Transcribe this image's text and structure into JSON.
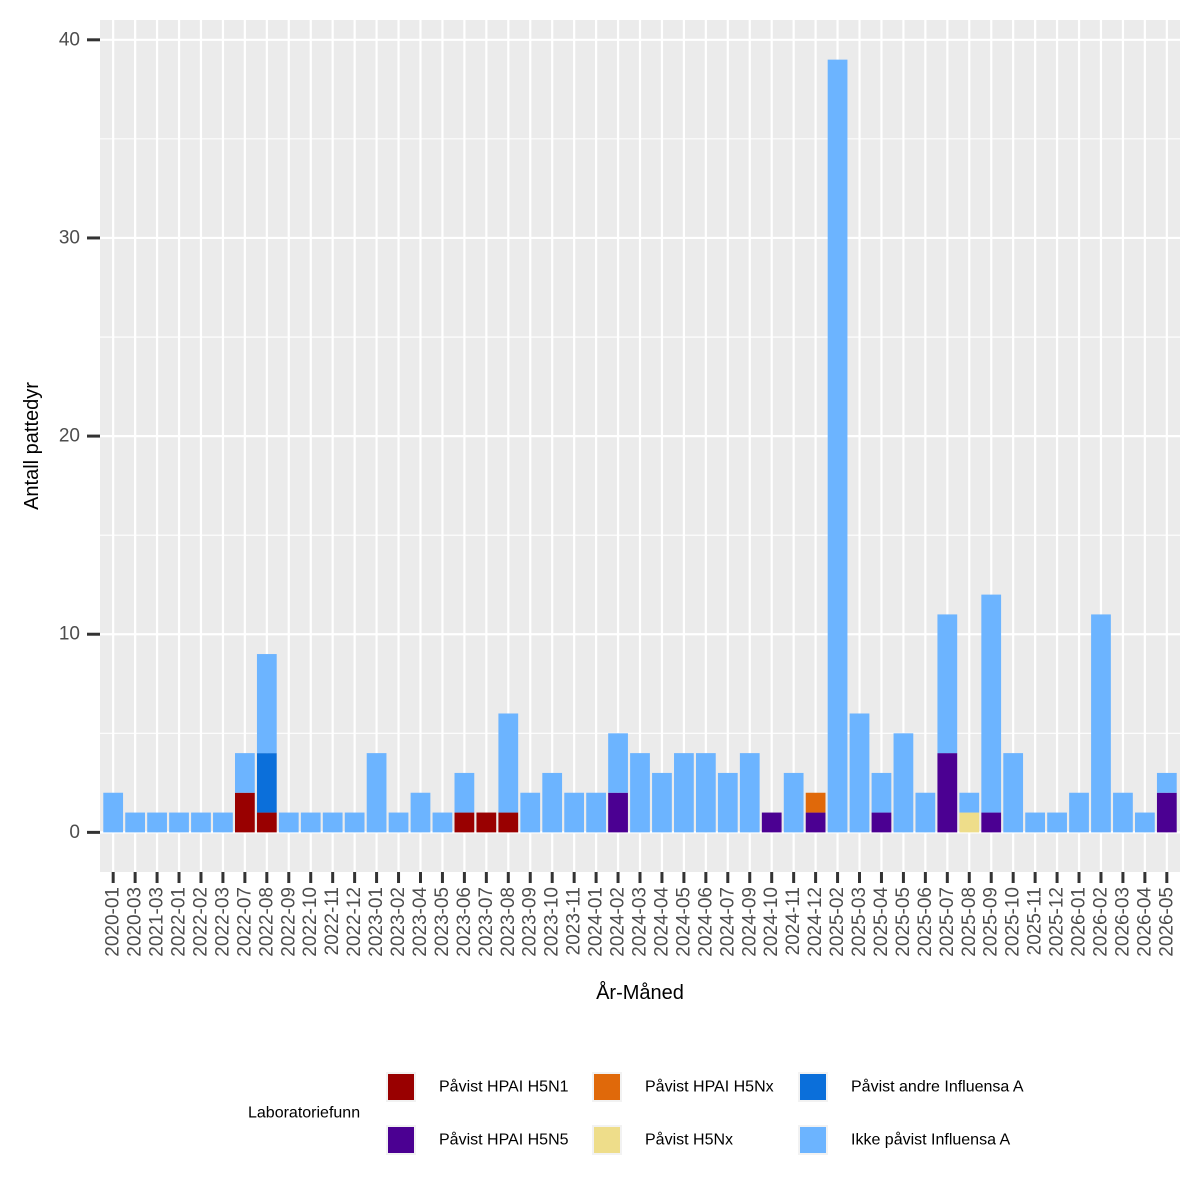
{
  "chart_data": {
    "type": "bar",
    "stacked": true,
    "xlabel": "År-Måned",
    "ylabel": "Antall pattedyr",
    "legend_title": "Laboratoriefunn",
    "legend_position": "bottom",
    "grid": true,
    "ylim": [
      -2,
      41
    ],
    "yticks": [
      0,
      10,
      20,
      30,
      40
    ],
    "categories": [
      "2020-01",
      "2020-03",
      "2021-03",
      "2022-01",
      "2022-02",
      "2022-03",
      "2022-07",
      "2022-08",
      "2022-09",
      "2022-10",
      "2022-11",
      "2022-12",
      "2023-01",
      "2023-02",
      "2023-04",
      "2023-05",
      "2023-06",
      "2023-07",
      "2023-08",
      "2023-09",
      "2023-10",
      "2023-11",
      "2024-01",
      "2024-02",
      "2024-03",
      "2024-04",
      "2024-05",
      "2024-06",
      "2024-07",
      "2024-09",
      "2024-10",
      "2024-11",
      "2024-12",
      "2025-02",
      "2025-03",
      "2025-04",
      "2025-05",
      "2025-06",
      "2025-07",
      "2025-08",
      "2025-09",
      "2025-10",
      "2025-11",
      "2025-12",
      "2026-01",
      "2026-02",
      "2026-03",
      "2026-04",
      "2026-05"
    ],
    "series": [
      {
        "name": "Påvist HPAI H5N1",
        "color": "#990000",
        "values": [
          0,
          0,
          0,
          0,
          0,
          0,
          2,
          1,
          0,
          0,
          0,
          0,
          0,
          0,
          0,
          0,
          1,
          1,
          1,
          0,
          0,
          0,
          0,
          0,
          0,
          0,
          0,
          0,
          0,
          0,
          0,
          0,
          0,
          0,
          0,
          0,
          0,
          0,
          0,
          0,
          0,
          0,
          0,
          0,
          0,
          0,
          0,
          0,
          0
        ]
      },
      {
        "name": "Påvist HPAI H5N5",
        "color": "#4B0092",
        "values": [
          0,
          0,
          0,
          0,
          0,
          0,
          0,
          0,
          0,
          0,
          0,
          0,
          0,
          0,
          0,
          0,
          0,
          0,
          0,
          0,
          0,
          0,
          0,
          2,
          0,
          0,
          0,
          0,
          0,
          0,
          1,
          0,
          1,
          0,
          0,
          1,
          0,
          0,
          4,
          0,
          1,
          0,
          0,
          0,
          0,
          0,
          0,
          0,
          2
        ]
      },
      {
        "name": "Påvist HPAI H5Nx",
        "color": "#E0690A",
        "values": [
          0,
          0,
          0,
          0,
          0,
          0,
          0,
          0,
          0,
          0,
          0,
          0,
          0,
          0,
          0,
          0,
          0,
          0,
          0,
          0,
          0,
          0,
          0,
          0,
          0,
          0,
          0,
          0,
          0,
          0,
          0,
          0,
          1,
          0,
          0,
          0,
          0,
          0,
          0,
          0,
          0,
          0,
          0,
          0,
          0,
          0,
          0,
          0,
          0
        ]
      },
      {
        "name": "Påvist H5Nx",
        "color": "#EEDD8A",
        "values": [
          0,
          0,
          0,
          0,
          0,
          0,
          0,
          0,
          0,
          0,
          0,
          0,
          0,
          0,
          0,
          0,
          0,
          0,
          0,
          0,
          0,
          0,
          0,
          0,
          0,
          0,
          0,
          0,
          0,
          0,
          0,
          0,
          0,
          0,
          0,
          0,
          0,
          0,
          0,
          1,
          0,
          0,
          0,
          0,
          0,
          0,
          0,
          0,
          0
        ]
      },
      {
        "name": "Påvist andre Influensa A",
        "color": "#0B6FDA",
        "values": [
          0,
          0,
          0,
          0,
          0,
          0,
          0,
          3,
          0,
          0,
          0,
          0,
          0,
          0,
          0,
          0,
          0,
          0,
          0,
          0,
          0,
          0,
          0,
          0,
          0,
          0,
          0,
          0,
          0,
          0,
          0,
          0,
          0,
          0,
          0,
          0,
          0,
          0,
          0,
          0,
          0,
          0,
          0,
          0,
          0,
          0,
          0,
          0,
          0
        ]
      },
      {
        "name": "Ikke påvist Influensa A",
        "color": "#6CB4FF",
        "values": [
          2,
          1,
          1,
          1,
          1,
          1,
          2,
          5,
          1,
          1,
          1,
          1,
          4,
          1,
          2,
          1,
          2,
          0,
          5,
          2,
          3,
          2,
          2,
          3,
          4,
          3,
          4,
          4,
          3,
          4,
          0,
          3,
          0,
          39,
          6,
          2,
          5,
          2,
          7,
          1,
          11,
          4,
          1,
          1,
          2,
          11,
          2,
          1,
          1
        ]
      }
    ]
  }
}
